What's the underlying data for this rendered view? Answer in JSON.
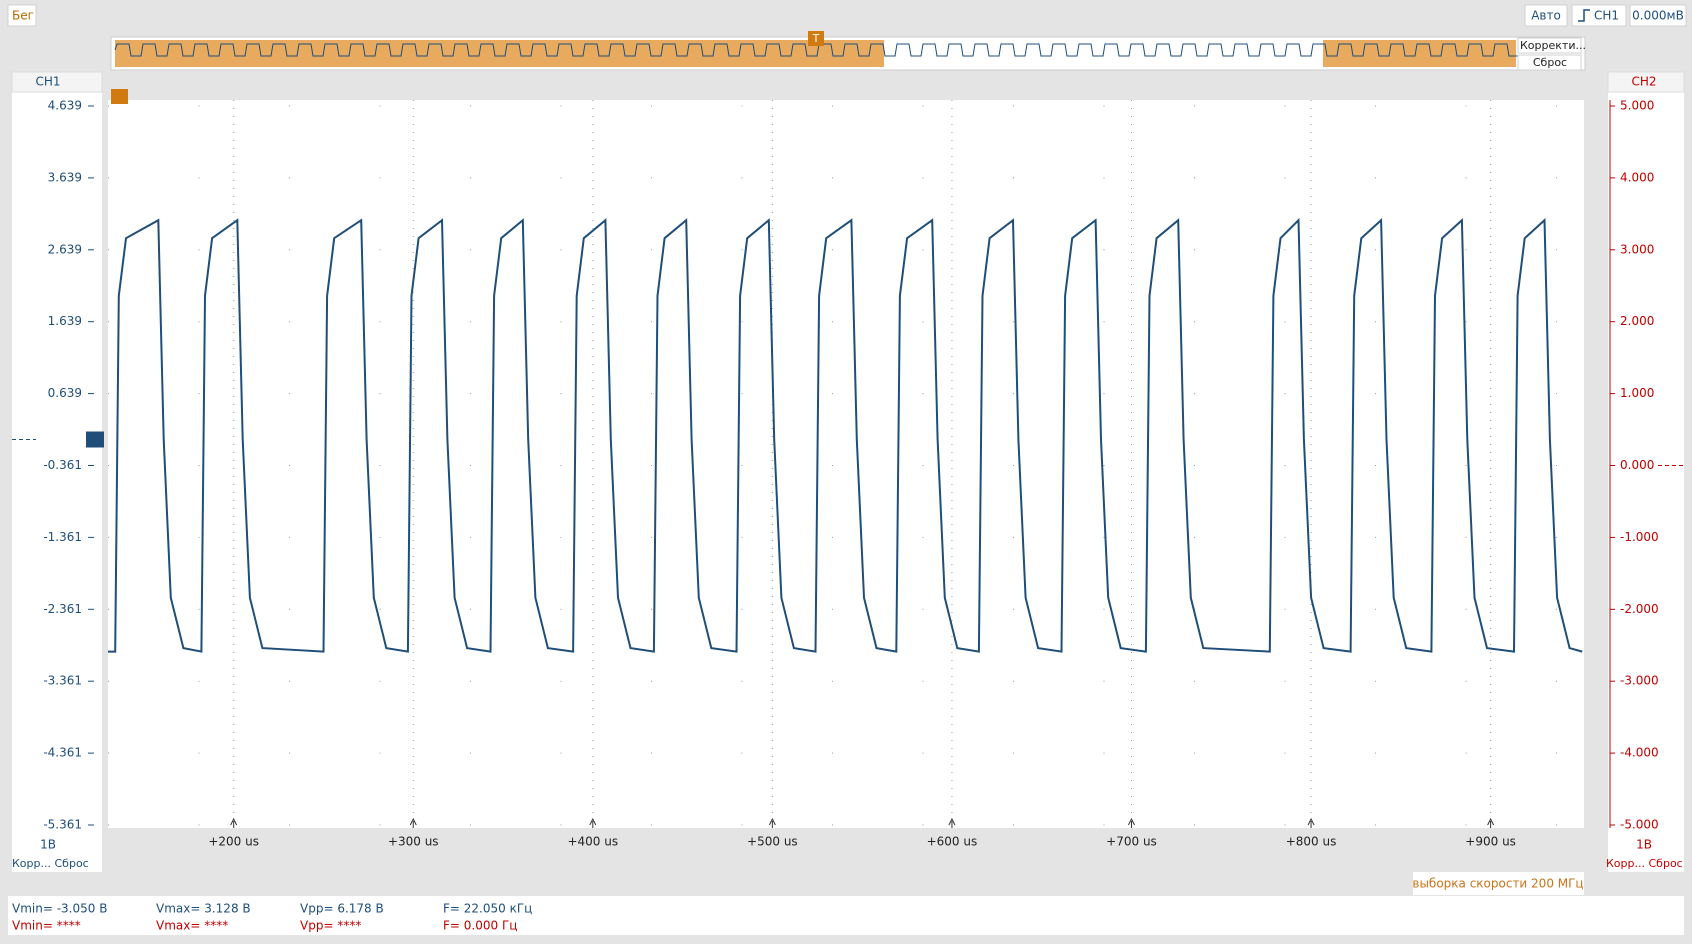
{
  "chart_data": {
    "type": "line",
    "xlim": [
      130,
      952
    ],
    "xticks": [
      {
        "value": 200,
        "label": "+200 us"
      },
      {
        "value": 300,
        "label": "+300 us"
      },
      {
        "value": 400,
        "label": "+400 us"
      },
      {
        "value": 500,
        "label": "+500 us"
      },
      {
        "value": 600,
        "label": "+600 us"
      },
      {
        "value": 700,
        "label": "+700 us"
      },
      {
        "value": 800,
        "label": "+800 us"
      },
      {
        "value": 900,
        "label": "+900 us"
      }
    ],
    "ylim": [
      -5.361,
      4.639
    ],
    "yticks": [
      4.639,
      3.639,
      2.639,
      1.639,
      0.639,
      -0.361,
      -1.361,
      -2.361,
      -3.361,
      -4.361,
      -5.361
    ],
    "y2lim": [
      -5,
      5
    ],
    "y2ticks": [
      {
        "value": 5,
        "label": "5.000"
      },
      {
        "value": 4,
        "label": "4.000"
      },
      {
        "value": 3,
        "label": "3.000"
      },
      {
        "value": 2,
        "label": "2.000"
      },
      {
        "value": 1,
        "label": "1.000"
      },
      {
        "value": 0,
        "label": "0.000"
      },
      {
        "value": -1,
        "label": "-1.000"
      },
      {
        "value": -2,
        "label": "-2.000"
      },
      {
        "value": -3,
        "label": "-3.000"
      },
      {
        "value": -4,
        "label": "-4.000"
      },
      {
        "value": -5,
        "label": "-5.000"
      }
    ],
    "y2_label": "CH2",
    "y2_color": "#c00000",
    "grid": true,
    "series": [
      {
        "name": "CH1",
        "color": "#1f4e79",
        "x": [
          130,
          134,
          136,
          140,
          158,
          161,
          165,
          172,
          182,
          184,
          188,
          202,
          205,
          209,
          216,
          250,
          252,
          256,
          271,
          274,
          278,
          285,
          297,
          299,
          303,
          316,
          319,
          323,
          330,
          343,
          345,
          349,
          361,
          364,
          368,
          375,
          389,
          391,
          395,
          407,
          410,
          414,
          421,
          434,
          436,
          440,
          452,
          455,
          459,
          466,
          480,
          482,
          486,
          498,
          501,
          505,
          512,
          524,
          526,
          530,
          544,
          547,
          551,
          558,
          569,
          571,
          575,
          589,
          592,
          596,
          603,
          615,
          617,
          621,
          634,
          637,
          641,
          648,
          661,
          663,
          667,
          680,
          683,
          687,
          694,
          708,
          710,
          714,
          726,
          729,
          733,
          740,
          777,
          779,
          783,
          793,
          796,
          800,
          807,
          822,
          824,
          828,
          839,
          842,
          846,
          853,
          867,
          869,
          873,
          884,
          887,
          891,
          898,
          913,
          915,
          919,
          930,
          933,
          937,
          944,
          951
        ],
        "values": [
          -2.95,
          -2.95,
          2.0,
          2.8,
          3.05,
          0,
          -2.2,
          -2.9,
          -2.95,
          2.0,
          2.8,
          3.05,
          0,
          -2.2,
          -2.9,
          -2.95,
          2.0,
          2.8,
          3.05,
          0,
          -2.2,
          -2.9,
          -2.95,
          2.0,
          2.8,
          3.05,
          0,
          -2.2,
          -2.9,
          -2.95,
          2.0,
          2.8,
          3.05,
          0,
          -2.2,
          -2.9,
          -2.95,
          2.0,
          2.8,
          3.05,
          0,
          -2.2,
          -2.9,
          -2.95,
          2.0,
          2.8,
          3.05,
          0,
          -2.2,
          -2.9,
          -2.95,
          2.0,
          2.8,
          3.05,
          0,
          -2.2,
          -2.9,
          -2.95,
          2.0,
          2.8,
          3.05,
          0,
          -2.2,
          -2.9,
          -2.95,
          2.0,
          2.8,
          3.05,
          0,
          -2.2,
          -2.9,
          -2.95,
          2.0,
          2.8,
          3.05,
          0,
          -2.2,
          -2.9,
          -2.95,
          2.0,
          2.8,
          3.05,
          0,
          -2.2,
          -2.9,
          -2.95,
          2.0,
          2.8,
          3.05,
          0,
          -2.2,
          -2.9,
          -2.95,
          2.0,
          2.8,
          3.05,
          0,
          -2.2,
          -2.9,
          -2.95,
          2.0,
          2.8,
          3.05,
          0,
          -2.2,
          -2.9,
          -2.95,
          2.0,
          2.8,
          3.05,
          0,
          -2.2,
          -2.9,
          -2.95,
          2.0,
          2.8,
          3.05,
          0,
          -2.2,
          -2.9,
          -2.95
        ]
      }
    ]
  },
  "ui": {
    "toolbar": {
      "run": "Бег",
      "mode": "Авто",
      "trigger_channel": "CH1",
      "trigger_level": "0.000мВ"
    },
    "overview": {
      "marker": "T",
      "correct": "Корректи...",
      "reset": "Сброс"
    },
    "ch1_panel": {
      "scale": "1В",
      "controls": "Корр... Сброс"
    },
    "ch2_panel": {
      "scale": "1В",
      "controls": "Корр... Сброс"
    },
    "sample_rate": "выборка скорости 200 МГц",
    "measurements": {
      "ch1": [
        "Vmin= -3.050 В",
        "Vmax= 3.128 В",
        "Vpp= 6.178 В",
        "F= 22.050 кГц"
      ],
      "ch2": [
        "Vmin= ****",
        "Vmax= ****",
        "Vpp= ****",
        "F= 0.000 Гц"
      ]
    }
  }
}
